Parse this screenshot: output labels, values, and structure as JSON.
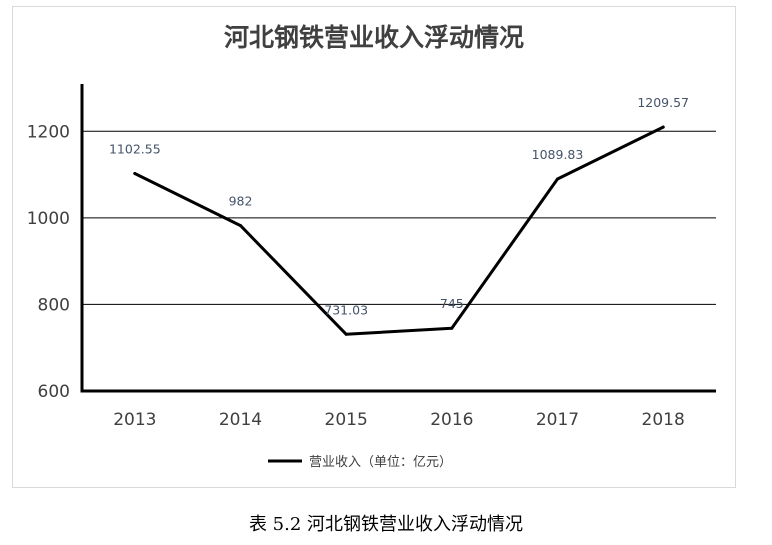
{
  "caption": "表 5.2  河北钢铁营业收入浮动情况",
  "chart_data": {
    "type": "line",
    "title": "河北钢铁营业收入浮动情况",
    "xlabel": "",
    "ylabel": "",
    "categories": [
      "2013",
      "2014",
      "2015",
      "2016",
      "2017",
      "2018"
    ],
    "series": [
      {
        "name": "营业收入（单位：亿元）",
        "values": [
          1102.55,
          982,
          731.03,
          745,
          1089.83,
          1209.57
        ],
        "labels": [
          "1102.55",
          "982",
          "731.03",
          "745",
          "1089.83",
          "1209.57"
        ]
      }
    ],
    "yticks": [
      600,
      800,
      1000,
      1200
    ],
    "ylim": [
      600,
      1300
    ],
    "grid": true,
    "legend": "bottom",
    "line_color": "#000000",
    "label_color": "#44546a"
  }
}
